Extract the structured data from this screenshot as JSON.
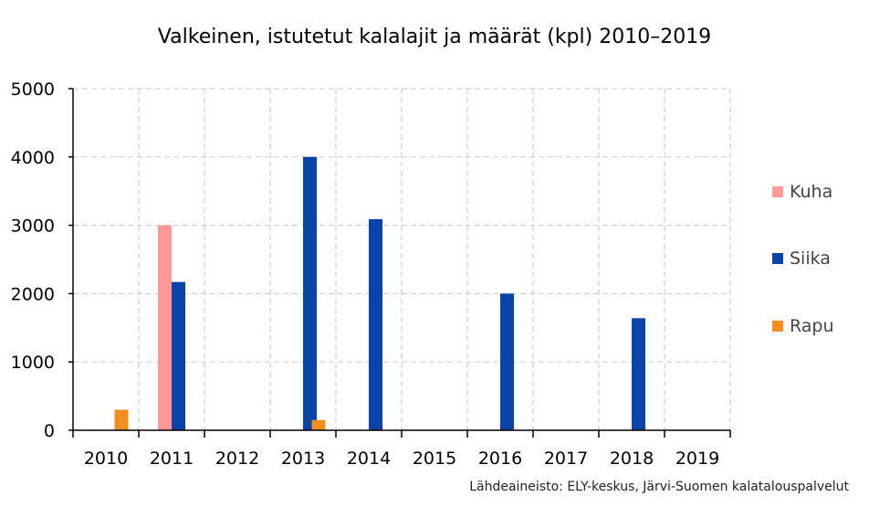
{
  "chart_data": {
    "type": "bar",
    "title": "Valkeinen, istutetut kalalajit ja määrät (kpl) 2010–2019",
    "source": "Lähdeaineisto: ELY-keskus, Järvi-Suomen kalatalouspalvelut",
    "categories": [
      "2010",
      "2011",
      "2012",
      "2013",
      "2014",
      "2015",
      "2016",
      "2017",
      "2018",
      "2019"
    ],
    "series": [
      {
        "name": "Kuha",
        "color": "#ff9999",
        "values": [
          0,
          3000,
          0,
          0,
          0,
          0,
          0,
          0,
          0,
          0
        ]
      },
      {
        "name": "Siika",
        "color": "#0b44a8",
        "values": [
          0,
          2170,
          0,
          4000,
          3090,
          0,
          2000,
          0,
          1640,
          0
        ]
      },
      {
        "name": "Rapu",
        "color": "#f28e1e",
        "values": [
          300,
          0,
          0,
          150,
          0,
          0,
          0,
          0,
          0,
          0
        ]
      }
    ],
    "ylim": [
      0,
      5000
    ],
    "yticks": [
      "0",
      "1000",
      "2000",
      "3000",
      "4000",
      "5000"
    ],
    "grid": true,
    "legend": "right"
  }
}
